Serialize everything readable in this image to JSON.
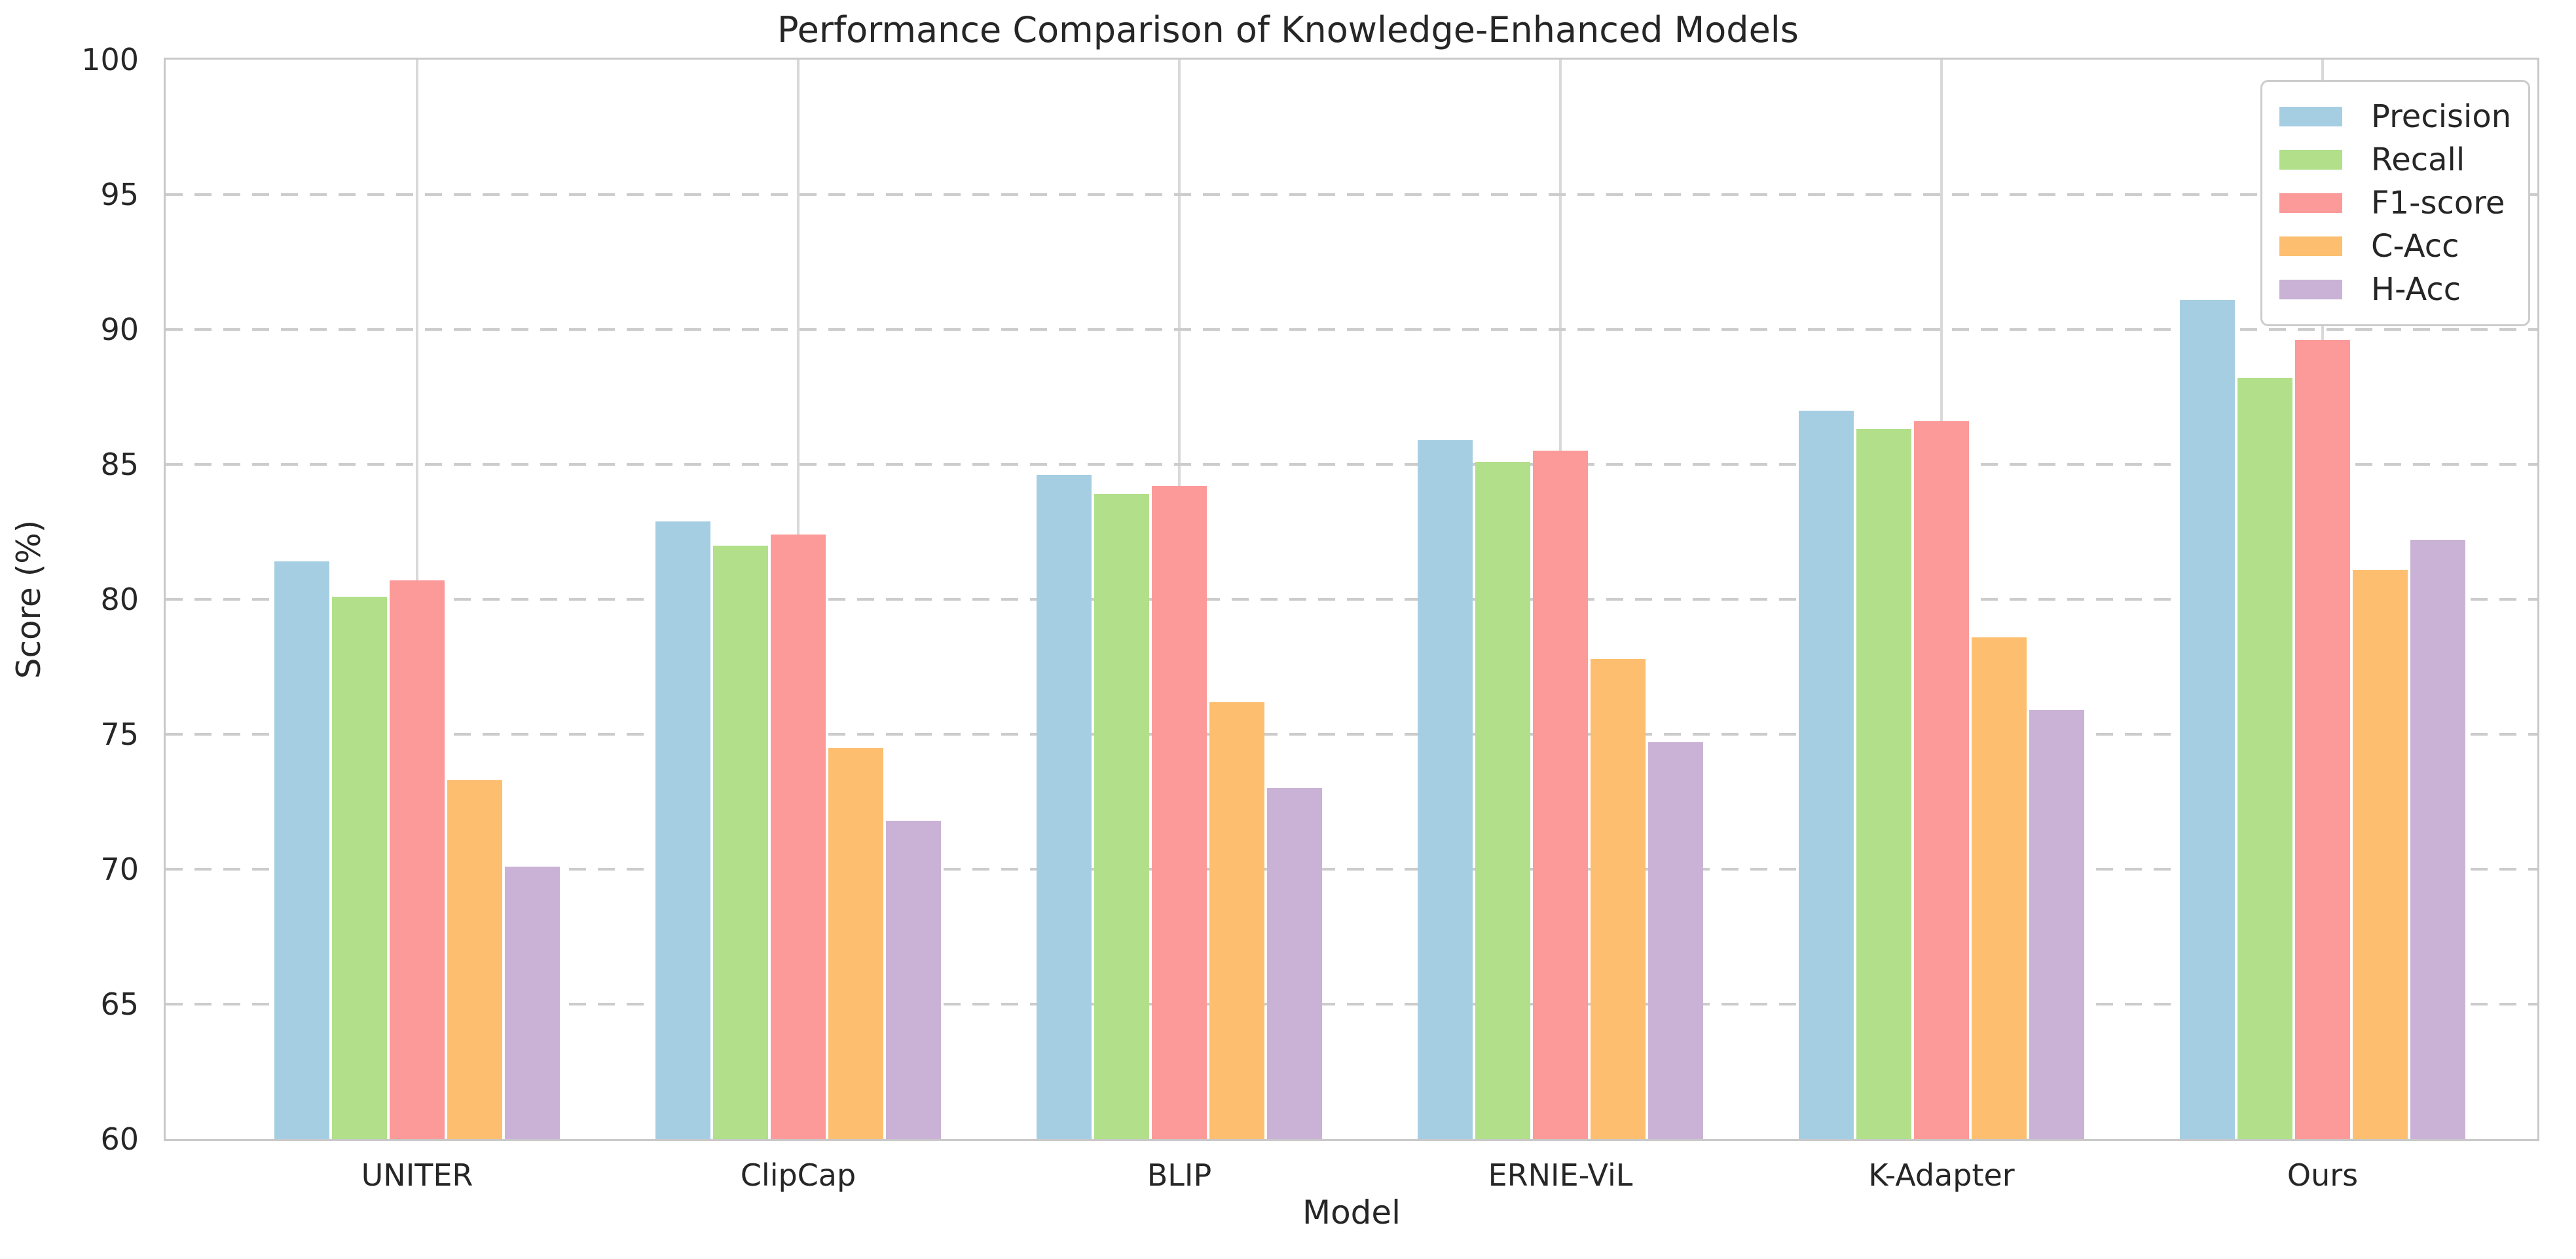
{
  "chart_data": {
    "type": "bar",
    "title": "Performance Comparison of Knowledge-Enhanced Models",
    "xlabel": "Model",
    "ylabel": "Score (%)",
    "ylim": [
      60,
      100
    ],
    "yticks": [
      60,
      65,
      70,
      75,
      80,
      85,
      90,
      95,
      100
    ],
    "grid": {
      "horizontal": "dashed",
      "vertical": "solid at category centers"
    },
    "legend_position": "upper right",
    "categories": [
      "UNITER",
      "ClipCap",
      "BLIP",
      "ERNIE-ViL",
      "K-Adapter",
      "Ours"
    ],
    "series": [
      {
        "name": "Precision",
        "color": "#a6cee3",
        "values": [
          81.4,
          82.9,
          84.6,
          85.9,
          87.0,
          91.1
        ]
      },
      {
        "name": "Recall",
        "color": "#b2df8a",
        "values": [
          80.1,
          82.0,
          83.9,
          85.1,
          86.3,
          88.2
        ]
      },
      {
        "name": "F1-score",
        "color": "#fb9a99",
        "values": [
          80.7,
          82.4,
          84.2,
          85.5,
          86.6,
          89.6
        ]
      },
      {
        "name": "C-Acc",
        "color": "#fdbf6f",
        "values": [
          73.3,
          74.5,
          76.2,
          77.8,
          78.6,
          81.1
        ]
      },
      {
        "name": "H-Acc",
        "color": "#cab2d6",
        "values": [
          70.1,
          71.8,
          73.0,
          74.7,
          75.9,
          82.2
        ]
      }
    ],
    "colors": {
      "background": "#ffffff",
      "grid_dashed": "#cccccc",
      "grid_vertical": "#d9d9d9",
      "spine": "#c9c9c9",
      "text": "#262626"
    }
  }
}
